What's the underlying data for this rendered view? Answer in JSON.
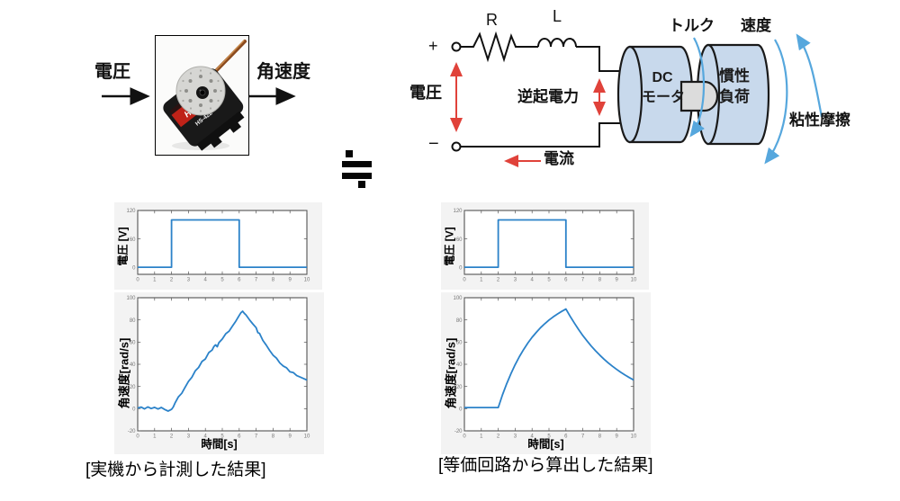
{
  "colors": {
    "plot_line": "#2b82c9",
    "red_arrow": "#e0423a",
    "blue_arrow": "#56a7dd",
    "cylinder_fill": "#c8d9ec",
    "outline": "#1a1a1a"
  },
  "block_diagram": {
    "input_label": "電圧",
    "output_label": "角速度",
    "servo_brand": "HiTEC",
    "servo_model": "HS-422"
  },
  "equivalence_symbol": "≒",
  "circuit": {
    "plus_terminal": "+",
    "minus_terminal": "−",
    "resistor_label": "R",
    "inductor_label": "L",
    "voltage_label": "電圧",
    "back_emf_label": "逆起電力",
    "current_label": "電流",
    "motor_label_line1": "DC",
    "motor_label_line2": "モータ",
    "inertia_label_line1": "慣性",
    "inertia_label_line2": "負荷",
    "torque_label": "トルク",
    "speed_label": "速度",
    "friction_label": "粘性摩擦"
  },
  "chart_data": [
    {
      "id": "voltage-measured",
      "type": "line",
      "title": "",
      "xlabel": "",
      "ylabel": "電圧 [V]",
      "xlim": [
        0,
        10
      ],
      "ylim": [
        -15,
        120
      ],
      "xticks": [
        0,
        1,
        2,
        3,
        4,
        5,
        6,
        7,
        8,
        9,
        10
      ],
      "yticks": [
        0,
        60,
        120
      ],
      "grid": false,
      "series": [
        {
          "name": "電圧",
          "points": [
            [
              0,
              0
            ],
            [
              2,
              0
            ],
            [
              2,
              100
            ],
            [
              6,
              100
            ],
            [
              6,
              0
            ],
            [
              10,
              0
            ]
          ]
        }
      ]
    },
    {
      "id": "angular-velocity-measured",
      "type": "line",
      "title": "",
      "xlabel": "時間[s]",
      "ylabel": "角速度[rad/s]",
      "xlim": [
        0,
        10
      ],
      "ylim": [
        -20,
        100
      ],
      "xticks": [
        0,
        1,
        2,
        3,
        4,
        5,
        6,
        7,
        8,
        9,
        10
      ],
      "yticks": [
        -20,
        0,
        20,
        40,
        60,
        80,
        100
      ],
      "grid": false,
      "series": [
        {
          "name": "角速度",
          "points": [
            [
              0,
              0.6
            ],
            [
              0.2,
              1.4
            ],
            [
              0.4,
              -0.2
            ],
            [
              0.6,
              1.6
            ],
            [
              0.8,
              0.1
            ],
            [
              1,
              1.2
            ],
            [
              1.2,
              -0.3
            ],
            [
              1.4,
              1.1
            ],
            [
              1.6,
              -0.8
            ],
            [
              1.8,
              -2.2
            ],
            [
              1.9,
              -1.4
            ],
            [
              2,
              -0.6
            ],
            [
              2.1,
              1.5
            ],
            [
              2.2,
              5
            ],
            [
              2.4,
              10.5
            ],
            [
              2.6,
              13.8
            ],
            [
              2.8,
              19.2
            ],
            [
              3,
              24.5
            ],
            [
              3.2,
              28.3
            ],
            [
              3.4,
              34
            ],
            [
              3.6,
              37.2
            ],
            [
              3.8,
              42.5
            ],
            [
              4,
              44.8
            ],
            [
              4.2,
              50.5
            ],
            [
              4.4,
              52.8
            ],
            [
              4.5,
              55.9
            ],
            [
              4.6,
              57.5
            ],
            [
              4.7,
              55.8
            ],
            [
              4.8,
              59.5
            ],
            [
              5,
              62.8
            ],
            [
              5.2,
              67.5
            ],
            [
              5.4,
              69.8
            ],
            [
              5.6,
              74.5
            ],
            [
              5.8,
              78.8
            ],
            [
              6,
              84
            ],
            [
              6.1,
              86.5
            ],
            [
              6.2,
              87.8
            ],
            [
              6.3,
              86
            ],
            [
              6.4,
              84.5
            ],
            [
              6.6,
              80.2
            ],
            [
              6.8,
              76.5
            ],
            [
              7,
              73
            ],
            [
              7.1,
              68.5
            ],
            [
              7.2,
              67.8
            ],
            [
              7.4,
              61.5
            ],
            [
              7.6,
              57.2
            ],
            [
              7.8,
              52.5
            ],
            [
              8,
              48.2
            ],
            [
              8.2,
              45.5
            ],
            [
              8.4,
              41.2
            ],
            [
              8.6,
              38.5
            ],
            [
              8.8,
              36.8
            ],
            [
              9,
              33.2
            ],
            [
              9.2,
              32.5
            ],
            [
              9.4,
              29.8
            ],
            [
              9.6,
              28.5
            ],
            [
              9.8,
              27.2
            ],
            [
              10,
              25.8
            ]
          ]
        }
      ]
    },
    {
      "id": "voltage-computed",
      "type": "line",
      "title": "",
      "xlabel": "",
      "ylabel": "電圧 [V]",
      "xlim": [
        0,
        10
      ],
      "ylim": [
        -15,
        120
      ],
      "xticks": [
        0,
        1,
        2,
        3,
        4,
        5,
        6,
        7,
        8,
        9,
        10
      ],
      "yticks": [
        0,
        60,
        120
      ],
      "grid": false,
      "series": [
        {
          "name": "電圧",
          "points": [
            [
              0,
              0
            ],
            [
              2,
              0
            ],
            [
              2,
              100
            ],
            [
              6,
              100
            ],
            [
              6,
              0
            ],
            [
              10,
              0
            ]
          ]
        }
      ]
    },
    {
      "id": "angular-velocity-computed",
      "type": "line",
      "title": "",
      "xlabel": "時間[s]",
      "ylabel": "角速度[rad/s]",
      "xlim": [
        0,
        10
      ],
      "ylim": [
        -20,
        100
      ],
      "xticks": [
        0,
        1,
        2,
        3,
        4,
        5,
        6,
        7,
        8,
        9,
        10
      ],
      "yticks": [
        -20,
        0,
        20,
        40,
        60,
        80,
        100
      ],
      "grid": false,
      "series": [
        {
          "name": "角速度",
          "points": [
            [
              0,
              1
            ],
            [
              1,
              1
            ],
            [
              2,
              1
            ],
            [
              2.25,
              12.4
            ],
            [
              2.5,
              22.5
            ],
            [
              2.75,
              31.5
            ],
            [
              3,
              39.7
            ],
            [
              3.25,
              46.9
            ],
            [
              3.5,
              53.3
            ],
            [
              3.75,
              59.1
            ],
            [
              4,
              64.3
            ],
            [
              4.25,
              68.8
            ],
            [
              4.5,
              73
            ],
            [
              4.75,
              76.6
            ],
            [
              5,
              79.9
            ],
            [
              5.25,
              82.7
            ],
            [
              5.5,
              85.3
            ],
            [
              5.75,
              87.7
            ],
            [
              6,
              89.8
            ],
            [
              6.25,
              83.2
            ],
            [
              6.5,
              77.1
            ],
            [
              6.75,
              71.3
            ],
            [
              7,
              65.9
            ],
            [
              7.25,
              61
            ],
            [
              7.5,
              56.4
            ],
            [
              7.75,
              52.2
            ],
            [
              8,
              48.3
            ],
            [
              8.25,
              44.6
            ],
            [
              8.5,
              41.3
            ],
            [
              8.75,
              38.2
            ],
            [
              9,
              35.4
            ],
            [
              9.25,
              32.7
            ],
            [
              9.5,
              30.3
            ],
            [
              9.75,
              28
            ],
            [
              10,
              25.9
            ]
          ]
        }
      ]
    }
  ],
  "captions": {
    "left": "[実機から計測した結果]",
    "right": "[等価回路から算出した結果]"
  }
}
